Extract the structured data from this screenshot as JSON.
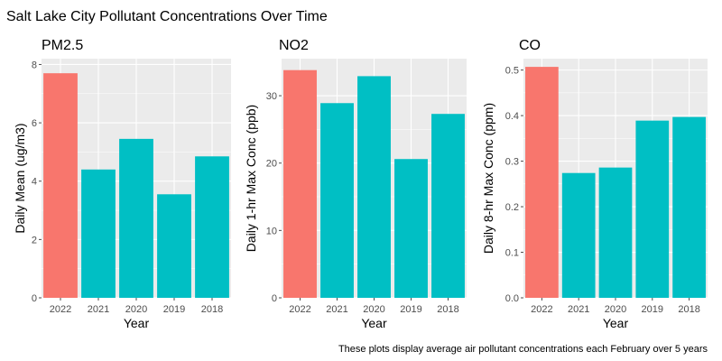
{
  "title": "Salt Lake City Pollutant Concentrations Over Time",
  "caption": "These plots display average air pollutant concentrations each February over 5 years",
  "colors": {
    "panel_bg": "#EBEBEB",
    "grid_major": "#FFFFFF",
    "highlight_bar": "#F8766D",
    "other_bar": "#00BFC4",
    "tick_color": "#4D4D4D"
  },
  "chart_data": [
    {
      "type": "bar",
      "title": "PM2.5",
      "xlabel": "Year",
      "ylabel": "Daily Mean (ug/m3)",
      "categories": [
        "2022",
        "2021",
        "2020",
        "2019",
        "2018"
      ],
      "values": [
        7.7,
        4.4,
        5.45,
        3.55,
        4.85
      ],
      "highlight": [
        "2022"
      ],
      "ylim": [
        0,
        8.2
      ],
      "yticks": [
        0,
        2,
        4,
        6,
        8
      ],
      "ytick_labels": [
        "0",
        "2",
        "4",
        "6",
        "8"
      ],
      "grid": true
    },
    {
      "type": "bar",
      "title": "NO2",
      "xlabel": "Year",
      "ylabel": "Daily 1-hr Max Conc (ppb)",
      "categories": [
        "2022",
        "2021",
        "2020",
        "2019",
        "2018"
      ],
      "values": [
        33.8,
        28.9,
        32.9,
        20.6,
        27.3
      ],
      "highlight": [
        "2022"
      ],
      "ylim": [
        0,
        35.5
      ],
      "yticks": [
        0,
        10,
        20,
        30
      ],
      "ytick_labels": [
        "0",
        "10",
        "20",
        "30"
      ],
      "grid": true
    },
    {
      "type": "bar",
      "title": "CO",
      "xlabel": "Year",
      "ylabel": "Daily 8-hr Max Conc (ppm)",
      "categories": [
        "2022",
        "2021",
        "2020",
        "2019",
        "2018"
      ],
      "values": [
        0.507,
        0.274,
        0.286,
        0.389,
        0.397
      ],
      "highlight": [
        "2022"
      ],
      "ylim": [
        0,
        0.525
      ],
      "yticks": [
        0,
        0.1,
        0.2,
        0.3,
        0.4,
        0.5
      ],
      "ytick_labels": [
        "0.0",
        "0.1",
        "0.2",
        "0.3",
        "0.4",
        "0.5"
      ],
      "grid": true
    }
  ]
}
